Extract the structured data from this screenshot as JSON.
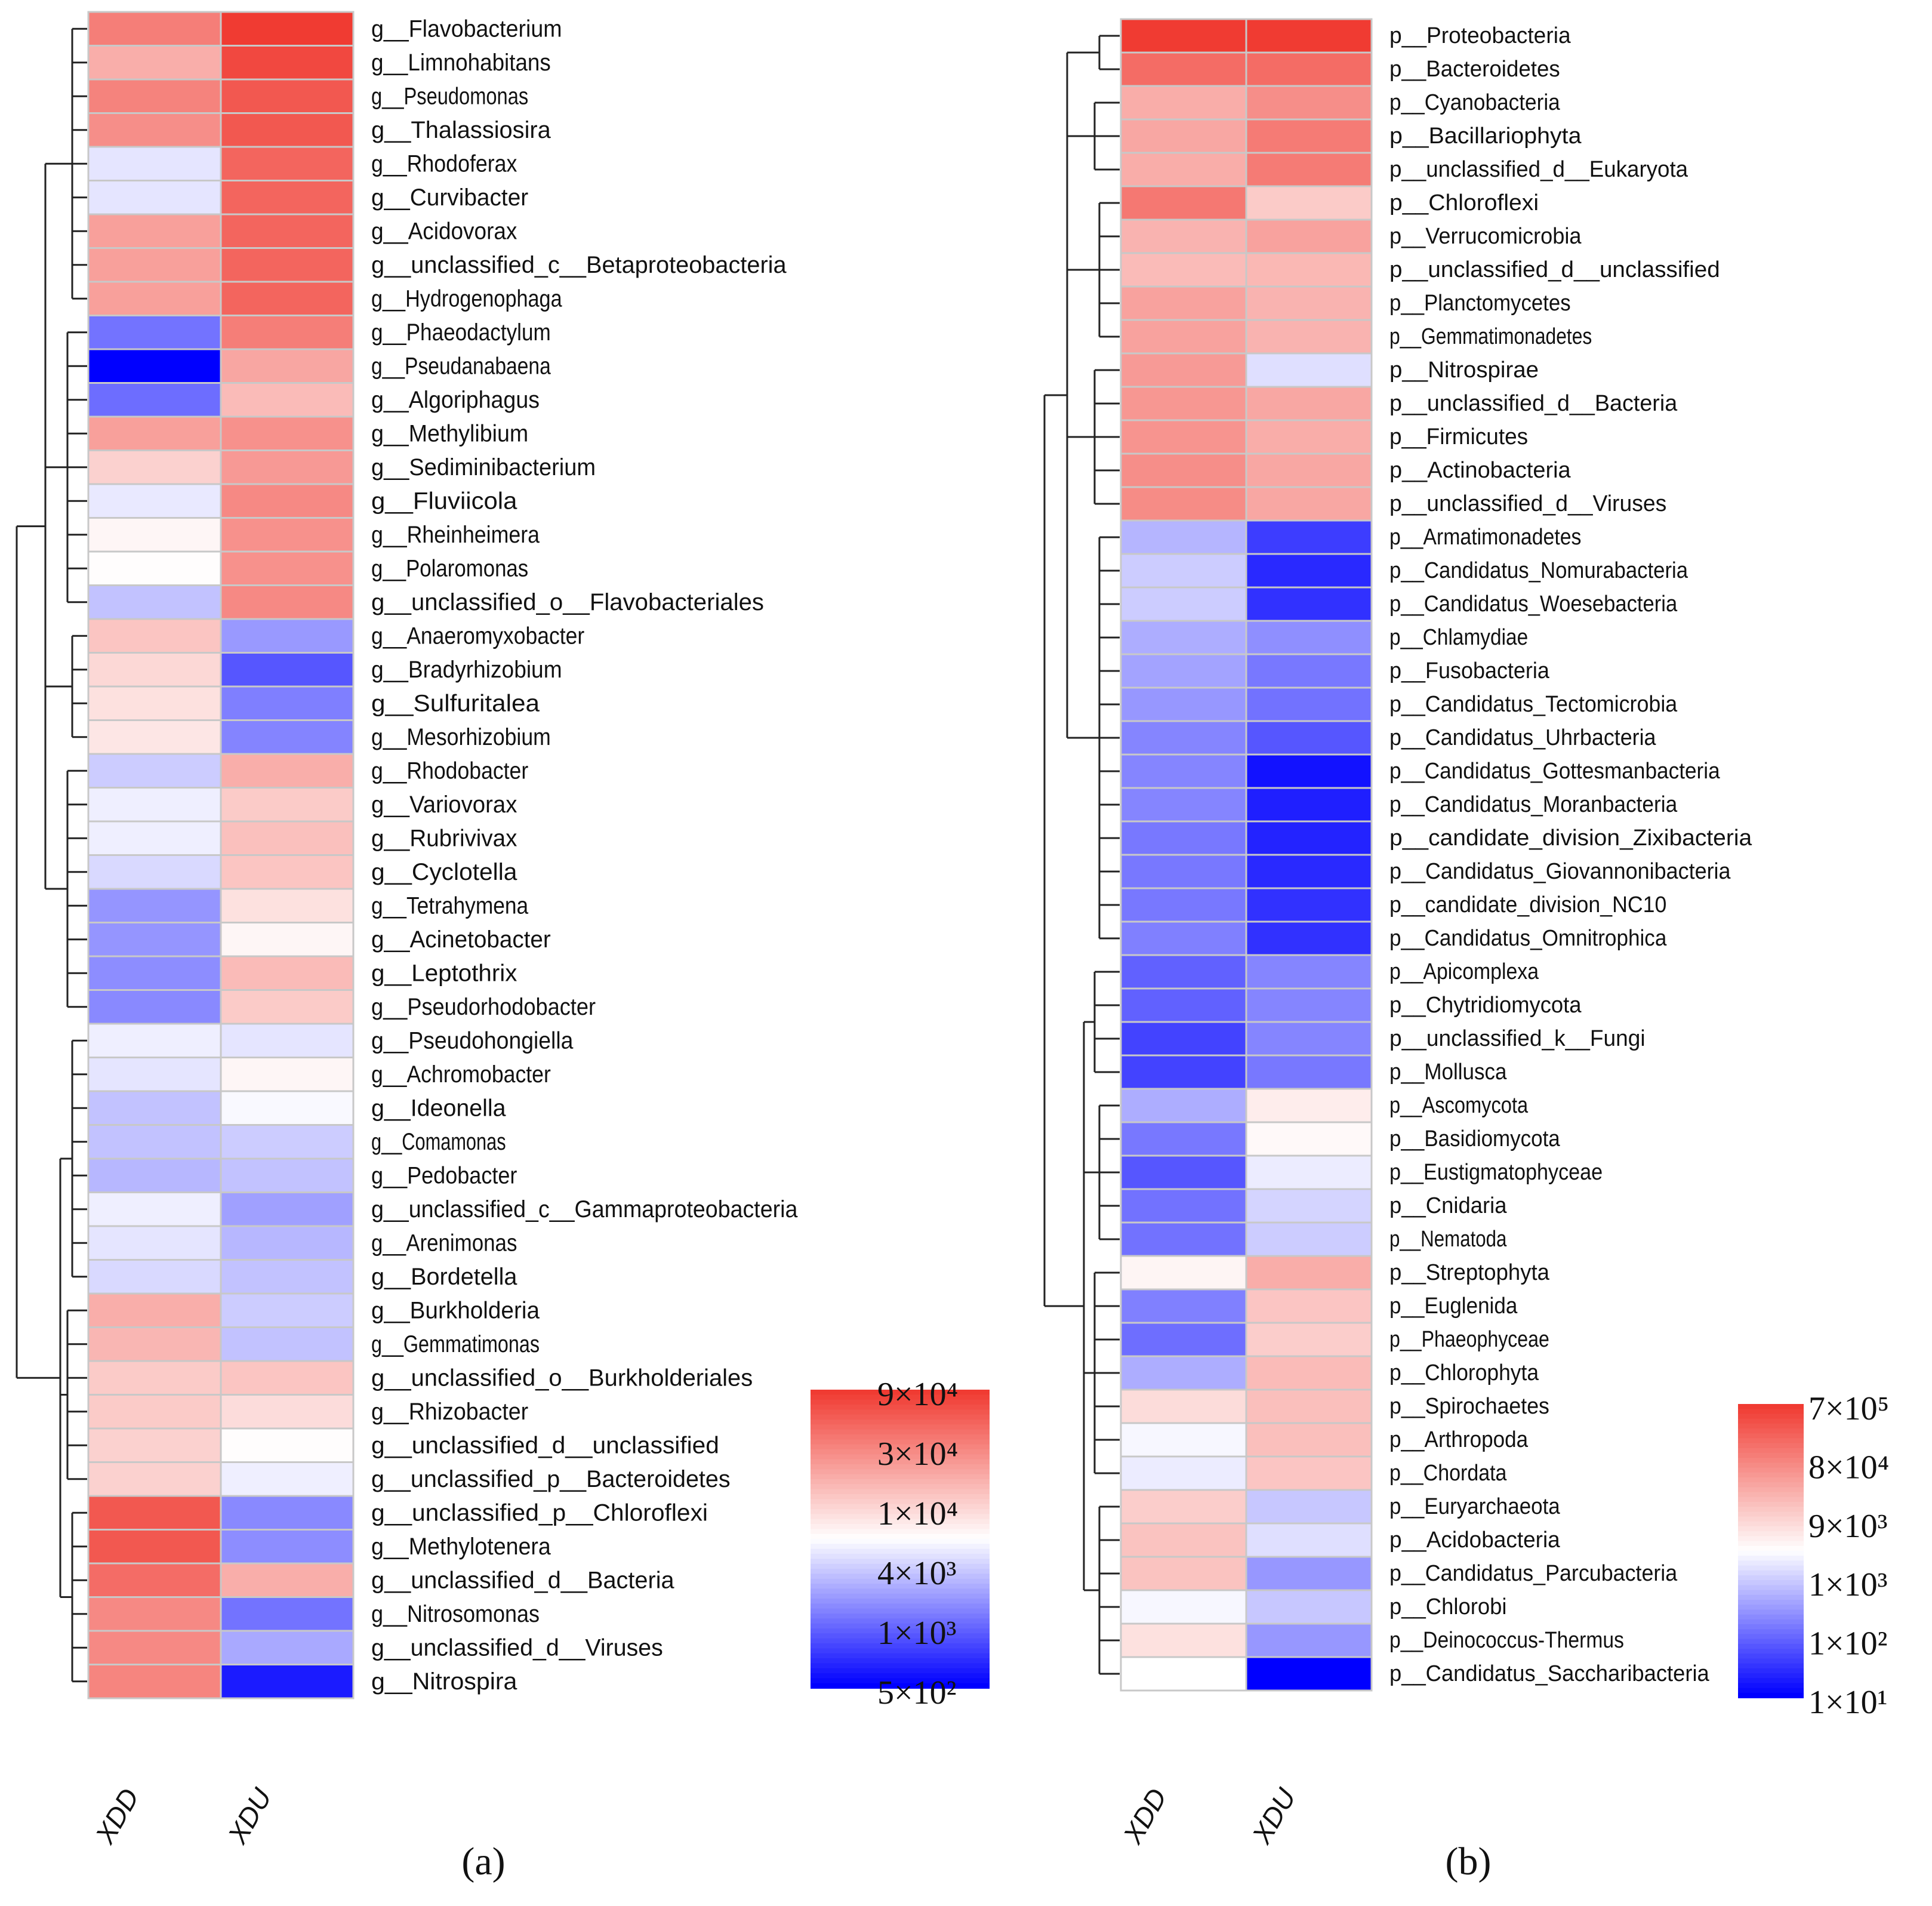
{
  "chart_data": [
    {
      "type": "heatmap",
      "panel_label": "(a)",
      "columns": [
        "XDD",
        "XDU"
      ],
      "legend_ticks": [
        "9×10⁴",
        "3×10⁴",
        "1×10⁴",
        "4×10³",
        "1×10³",
        "5×10²"
      ],
      "rows": [
        {
          "label": "g__Flavobacterium",
          "values": [
            35000.0,
            90000.0
          ]
        },
        {
          "label": "g__Limnohabitans",
          "values": [
            18000.0,
            75000.0
          ]
        },
        {
          "label": "g__Pseudomonas",
          "values": [
            33000.0,
            60000.0
          ]
        },
        {
          "label": "g__Thalassiosira",
          "values": [
            28000.0,
            60000.0
          ]
        },
        {
          "label": "g__Rhodoferax",
          "values": [
            5000.0,
            50000.0
          ]
        },
        {
          "label": "g__Curvibacter",
          "values": [
            5000.0,
            50000.0
          ]
        },
        {
          "label": "g__Acidovorax",
          "values": [
            22000.0,
            50000.0
          ]
        },
        {
          "label": "g__unclassified_c__Betaproteobacteria",
          "values": [
            22000.0,
            50000.0
          ]
        },
        {
          "label": "g__Hydrogenophaga",
          "values": [
            22000.0,
            50000.0
          ]
        },
        {
          "label": "g__Phaeodactylum",
          "values": [
            1200.0,
            35000.0
          ]
        },
        {
          "label": "g__Pseudanabaena",
          "values": [
            500.0,
            20000.0
          ]
        },
        {
          "label": "g__Algoriphagus",
          "values": [
            1100.0,
            15000.0
          ]
        },
        {
          "label": "g__Methylibium",
          "values": [
            22000.0,
            27000.0
          ]
        },
        {
          "label": "g__Sediminibacterium",
          "values": [
            11000.0,
            24000.0
          ]
        },
        {
          "label": "g__Fluviicola",
          "values": [
            5200.0,
            30000.0
          ]
        },
        {
          "label": "g__Rheinheimera",
          "values": [
            7000.0,
            27000.0
          ]
        },
        {
          "label": "g__Polaromonas",
          "values": [
            6500.0,
            27000.0
          ]
        },
        {
          "label": "g__unclassified_o__Flavobacteriales",
          "values": [
            3500.0,
            30000.0
          ]
        },
        {
          "label": "g__Anaeromyxobacter",
          "values": [
            13000.0,
            2000.0
          ]
        },
        {
          "label": "g__Bradyrhizobium",
          "values": [
            10000.0,
            900.0
          ]
        },
        {
          "label": "g__Sulfuritalea",
          "values": [
            9000.0,
            1400.0
          ]
        },
        {
          "label": "g__Mesorhizobium",
          "values": [
            8500.0,
            1500.0
          ]
        },
        {
          "label": "g__Rhodobacter",
          "values": [
            4000.0,
            18000.0
          ]
        },
        {
          "label": "g__Variovorax",
          "values": [
            5500.0,
            12000.0
          ]
        },
        {
          "label": "g__Rubrivivax",
          "values": [
            5500.0,
            14000.0
          ]
        },
        {
          "label": "g__Cyclotella",
          "values": [
            4500.0,
            13000.0
          ]
        },
        {
          "label": "g__Tetrahymena",
          "values": [
            1900.0,
            9000.0
          ]
        },
        {
          "label": "g__Acinetobacter",
          "values": [
            1900.0,
            7000.0
          ]
        },
        {
          "label": "g__Leptothrix",
          "values": [
            1700.0,
            15000.0
          ]
        },
        {
          "label": "g__Pseudorhodobacter",
          "values": [
            1600.0,
            12000.0
          ]
        },
        {
          "label": "g__Pseudohongiella",
          "values": [
            5500.0,
            5000.0
          ]
        },
        {
          "label": "g__Achromobacter",
          "values": [
            5000.0,
            7000.0
          ]
        },
        {
          "label": "g__Ideonella",
          "values": [
            3500.0,
            6000.0
          ]
        },
        {
          "label": "g__Comamonas",
          "values": [
            3500.0,
            4000.0
          ]
        },
        {
          "label": "g__Pedobacter",
          "values": [
            3000.0,
            3500.0
          ]
        },
        {
          "label": "g__unclassified_c__Gammaproteobacteria",
          "values": [
            5500.0,
            2200.0
          ]
        },
        {
          "label": "g__Arenimonas",
          "values": [
            5000.0,
            3000.0
          ]
        },
        {
          "label": "g__Bordetella",
          "values": [
            4500.0,
            3500.0
          ]
        },
        {
          "label": "g__Burkholderia",
          "values": [
            18000.0,
            4000.0
          ]
        },
        {
          "label": "g__Gemmatimonas",
          "values": [
            16000.0,
            3500.0
          ]
        },
        {
          "label": "g__unclassified_o__Burkholderiales",
          "values": [
            12000.0,
            13000.0
          ]
        },
        {
          "label": "g__Rhizobacter",
          "values": [
            12000.0,
            9500.0
          ]
        },
        {
          "label": "g__unclassified_d__unclassified",
          "values": [
            11000.0,
            6500.0
          ]
        },
        {
          "label": "g__unclassified_p__Bacteroidetes",
          "values": [
            11000.0,
            5500.0
          ]
        },
        {
          "label": "g__unclassified_p__Chloroflexi",
          "values": [
            60000.0,
            1600.0
          ]
        },
        {
          "label": "g__Methylotenera",
          "values": [
            60000.0,
            1700.0
          ]
        },
        {
          "label": "g__unclassified_d__Bacteria",
          "values": [
            45000.0,
            18000.0
          ]
        },
        {
          "label": "g__Nitrosomonas",
          "values": [
            30000.0,
            1200.0
          ]
        },
        {
          "label": "g__unclassified_d__Viruses",
          "values": [
            30000.0,
            2500.0
          ]
        },
        {
          "label": "g__Nitrospira",
          "values": [
            32000.0,
            600.0
          ]
        }
      ]
    },
    {
      "type": "heatmap",
      "panel_label": "(b)",
      "columns": [
        "XDD",
        "XDU"
      ],
      "legend_ticks": [
        "7×10⁵",
        "8×10⁴",
        "9×10³",
        "1×10³",
        "1×10²",
        "1×10¹"
      ],
      "rows": [
        {
          "label": "p__Proteobacteria",
          "values": [
            700000.0,
            700000.0
          ]
        },
        {
          "label": "p__Bacteroidetes",
          "values": [
            180000.0,
            180000.0
          ]
        },
        {
          "label": "p__Cyanobacteria",
          "values": [
            30000.0,
            70000.0
          ]
        },
        {
          "label": "p__Bacillariophyta",
          "values": [
            35000.0,
            120000.0
          ]
        },
        {
          "label": "p__unclassified_d__Eukaryota",
          "values": [
            30000.0,
            120000.0
          ]
        },
        {
          "label": "p__Chloroflexi",
          "values": [
            130000.0,
            13000.0
          ]
        },
        {
          "label": "p__Verrucomicrobia",
          "values": [
            25000.0,
            40000.0
          ]
        },
        {
          "label": "p__unclassified_d__unclassified",
          "values": [
            20000.0,
            22000.0
          ]
        },
        {
          "label": "p__Planctomycetes",
          "values": [
            40000.0,
            25000.0
          ]
        },
        {
          "label": "p__Gemmatimonadetes",
          "values": [
            40000.0,
            25000.0
          ]
        },
        {
          "label": "p__Nitrospirae",
          "values": [
            50000.0,
            1500.0
          ]
        },
        {
          "label": "p__unclassified_d__Bacteria",
          "values": [
            55000.0,
            35000.0
          ]
        },
        {
          "label": "p__Firmicutes",
          "values": [
            60000.0,
            30000.0
          ]
        },
        {
          "label": "p__Actinobacteria",
          "values": [
            70000.0,
            35000.0
          ]
        },
        {
          "label": "p__unclassified_d__Viruses",
          "values": [
            75000.0,
            35000.0
          ]
        },
        {
          "label": "p__Armatimonadetes",
          "values": [
            600.0,
            40.0
          ]
        },
        {
          "label": "p__Candidatus_Nomurabacteria",
          "values": [
            1000.0,
            25.0
          ]
        },
        {
          "label": "p__Candidatus_Woesebacteria",
          "values": [
            1000.0,
            30.0
          ]
        },
        {
          "label": "p__Chlamydiae",
          "values": [
            500.0,
            250.0
          ]
        },
        {
          "label": "p__Fusobacteria",
          "values": [
            400.0,
            150.0
          ]
        },
        {
          "label": "p__Candidatus_Tectomicrobia",
          "values": [
            300.0,
            130.0
          ]
        },
        {
          "label": "p__Candidatus_Uhrbacteria",
          "values": [
            200.0,
            70.0
          ]
        },
        {
          "label": "p__Candidatus_Gottesmanbacteria",
          "values": [
            200.0,
            15.0
          ]
        },
        {
          "label": "p__Candidatus_Moranbacteria",
          "values": [
            200.0,
            20.0
          ]
        },
        {
          "label": "p__candidate_division_Zixibacteria",
          "values": [
            150.0,
            22.0
          ]
        },
        {
          "label": "p__Candidatus_Giovannonibacteria",
          "values": [
            150.0,
            25.0
          ]
        },
        {
          "label": "p__candidate_division_NC10",
          "values": [
            150.0,
            30.0
          ]
        },
        {
          "label": "p__Candidatus_Omnitrophica",
          "values": [
            180.0,
            30.0
          ]
        },
        {
          "label": "p__Apicomplexa",
          "values": [
            90.0,
            200.0
          ]
        },
        {
          "label": "p__Chytridiomycota",
          "values": [
            90.0,
            200.0
          ]
        },
        {
          "label": "p__unclassified_k__Fungi",
          "values": [
            45.0,
            200.0
          ]
        },
        {
          "label": "p__Mollusca",
          "values": [
            45.0,
            150.0
          ]
        },
        {
          "label": "p__Ascomycota",
          "values": [
            500.0,
            5000.0
          ]
        },
        {
          "label": "p__Basidiomycota",
          "values": [
            150.0,
            3500.0
          ]
        },
        {
          "label": "p__Eustigmatophyceae",
          "values": [
            70.0,
            2000.0
          ]
        },
        {
          "label": "p__Cnidaria",
          "values": [
            130.0,
            1200.0
          ]
        },
        {
          "label": "p__Nematoda",
          "values": [
            130.0,
            1000.0
          ]
        },
        {
          "label": "p__Streptophyta",
          "values": [
            4000.0,
            30000.0
          ]
        },
        {
          "label": "p__Euglenida",
          "values": [
            180.0,
            15000.0
          ]
        },
        {
          "label": "p__Phaeophyceae",
          "values": [
            120.0,
            12000.0
          ]
        },
        {
          "label": "p__Chlorophyta",
          "values": [
            500.0,
            20000.0
          ]
        },
        {
          "label": "p__Spirochaetes",
          "values": [
            8000.0,
            18000.0
          ]
        },
        {
          "label": "p__Arthropoda",
          "values": [
            2500.0,
            18000.0
          ]
        },
        {
          "label": "p__Chordata",
          "values": [
            2000.0,
            15000.0
          ]
        },
        {
          "label": "p__Euryarchaeota",
          "values": [
            12000.0,
            900.0
          ]
        },
        {
          "label": "p__Acidobacteria",
          "values": [
            16000.0,
            1500.0
          ]
        },
        {
          "label": "p__Candidatus_Parcubacteria",
          "values": [
            16000.0,
            300.0
          ]
        },
        {
          "label": "p__Chlorobi",
          "values": [
            2500.0,
            900.0
          ]
        },
        {
          "label": "p__Deinococcus-Thermus",
          "values": [
            7000.0,
            300.0
          ]
        },
        {
          "label": "p__Candidatus_Saccharibacteria",
          "values": [
            3000.0,
            10.0
          ]
        }
      ]
    }
  ]
}
